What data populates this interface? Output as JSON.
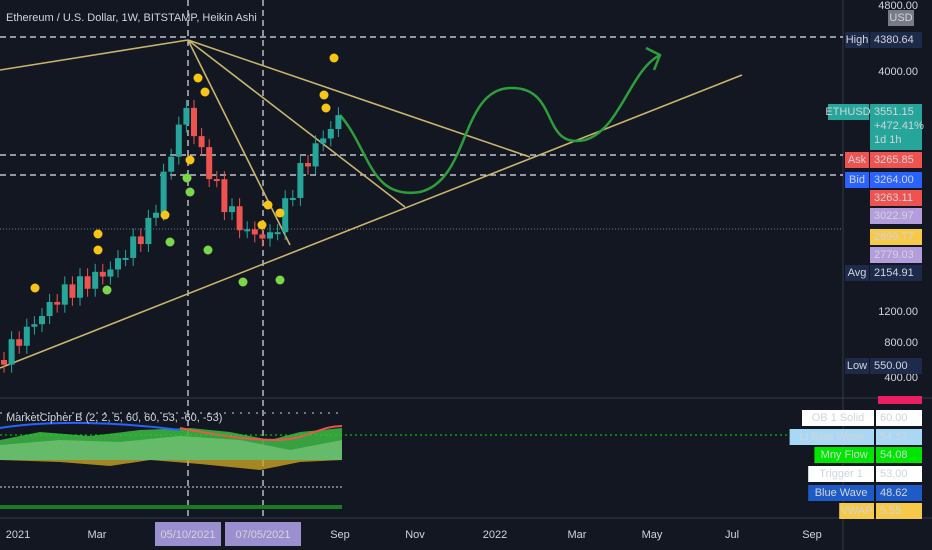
{
  "header": {
    "title": "Ethereum / U.S. Dollar, 1W, BITSTAMP, Heikin Ashi"
  },
  "price_axis": {
    "unit": "USD",
    "ticks": [
      "4800.00",
      "4000.00",
      "1200.00",
      "800.00",
      "400.00"
    ]
  },
  "symbol_tag": {
    "symbol": "ETHUSD",
    "price": "3551.15",
    "change": "+472.41%",
    "countdown": "1d 1h"
  },
  "price_tags": [
    {
      "label": "High",
      "value": "4380.64"
    },
    {
      "label": "Ask",
      "value": "3265.85"
    },
    {
      "label": "Bid",
      "value": "3264.00"
    },
    {
      "value": "3263.11"
    },
    {
      "value": "3022.97"
    },
    {
      "value": "2899.77"
    },
    {
      "value": "2779.03"
    },
    {
      "label": "Avg",
      "value": "2154.91"
    },
    {
      "label": "Low",
      "value": "550.00"
    }
  ],
  "indicator": {
    "title": "MarketCipher B (2, 2, 5, 60, 60, 53, -60, -53)",
    "tags": [
      {
        "label": "OB 1 Solid",
        "value": "60.00"
      },
      {
        "label": "Lt Blue Wave",
        "value": "54.17"
      },
      {
        "label": "Mny Flow",
        "value": "54.08"
      },
      {
        "label": "Trigger 1",
        "value": "53.00"
      },
      {
        "label": "Blue Wave",
        "value": "48.62"
      },
      {
        "label": "VWAP",
        "value": "5.55"
      }
    ]
  },
  "time_axis": {
    "labels": [
      "2021",
      "Mar",
      "Sep",
      "Nov",
      "2022",
      "Mar",
      "May",
      "Jul",
      "Sep"
    ],
    "cursor_labels": [
      "05/10/2021",
      "07/05/2021"
    ]
  }
}
